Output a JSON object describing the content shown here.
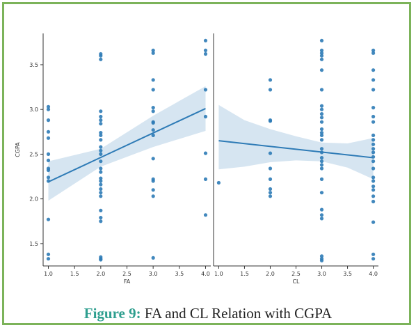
{
  "caption": {
    "label": "Figure 9:",
    "text": "FA and CL Relation with CGPA"
  },
  "colors": {
    "frame": "#7cb35a",
    "point": "#2e7bb6",
    "line": "#2e7bb6",
    "ci_band": "#cfe0ef",
    "caption_label": "#2f9f8f"
  },
  "chart_data": [
    {
      "type": "scatter",
      "xlabel": "FA",
      "ylabel": "CGPA",
      "xlim": [
        0.9,
        4.1
      ],
      "ylim": [
        1.25,
        3.85
      ],
      "x_ticks": [
        "1.0",
        "1.5",
        "2.0",
        "2.5",
        "3.0",
        "3.5",
        "4.0"
      ],
      "y_ticks": [
        "1.5",
        "2.0",
        "2.5",
        "3.0",
        "3.5"
      ],
      "points": [
        [
          1.0,
          3.03
        ],
        [
          1.0,
          3.0
        ],
        [
          1.0,
          2.88
        ],
        [
          1.0,
          2.75
        ],
        [
          1.0,
          2.68
        ],
        [
          1.0,
          2.5
        ],
        [
          1.0,
          2.43
        ],
        [
          1.0,
          2.34
        ],
        [
          1.0,
          2.32
        ],
        [
          1.0,
          2.24
        ],
        [
          1.0,
          2.2
        ],
        [
          1.0,
          1.77
        ],
        [
          1.0,
          1.38
        ],
        [
          1.0,
          1.33
        ],
        [
          2.0,
          3.62
        ],
        [
          2.0,
          3.6
        ],
        [
          2.0,
          3.56
        ],
        [
          2.0,
          2.98
        ],
        [
          2.0,
          2.92
        ],
        [
          2.0,
          2.88
        ],
        [
          2.0,
          2.84
        ],
        [
          2.0,
          2.74
        ],
        [
          2.0,
          2.71
        ],
        [
          2.0,
          2.66
        ],
        [
          2.0,
          2.58
        ],
        [
          2.0,
          2.54
        ],
        [
          2.0,
          2.5
        ],
        [
          2.0,
          2.42
        ],
        [
          2.0,
          2.34
        ],
        [
          2.0,
          2.3
        ],
        [
          2.0,
          2.23
        ],
        [
          2.0,
          2.2
        ],
        [
          2.0,
          2.16
        ],
        [
          2.0,
          2.11
        ],
        [
          2.0,
          2.07
        ],
        [
          2.0,
          2.03
        ],
        [
          2.0,
          1.87
        ],
        [
          2.0,
          1.79
        ],
        [
          2.0,
          1.75
        ],
        [
          2.0,
          1.35
        ],
        [
          2.0,
          1.33
        ],
        [
          2.0,
          1.32
        ],
        [
          3.0,
          3.66
        ],
        [
          3.0,
          3.63
        ],
        [
          3.0,
          3.33
        ],
        [
          3.0,
          3.22
        ],
        [
          3.0,
          3.02
        ],
        [
          3.0,
          2.98
        ],
        [
          3.0,
          2.86
        ],
        [
          3.0,
          2.85
        ],
        [
          3.0,
          2.77
        ],
        [
          3.0,
          2.71
        ],
        [
          3.0,
          2.45
        ],
        [
          3.0,
          2.22
        ],
        [
          3.0,
          2.2
        ],
        [
          3.0,
          2.1
        ],
        [
          3.0,
          2.03
        ],
        [
          3.0,
          1.34
        ],
        [
          4.0,
          3.77
        ],
        [
          4.0,
          3.66
        ],
        [
          4.0,
          3.62
        ],
        [
          4.0,
          3.22
        ],
        [
          4.0,
          2.92
        ],
        [
          4.0,
          2.51
        ],
        [
          4.0,
          2.22
        ],
        [
          4.0,
          1.82
        ]
      ],
      "regression": {
        "x": [
          1.0,
          4.0
        ],
        "y": [
          2.19,
          3.01
        ]
      },
      "ci_upper": [
        [
          1.0,
          2.42
        ],
        [
          2.0,
          2.56
        ],
        [
          3.0,
          2.93
        ],
        [
          4.0,
          3.26
        ]
      ],
      "ci_lower": [
        [
          1.0,
          1.98
        ],
        [
          2.0,
          2.36
        ],
        [
          3.0,
          2.58
        ],
        [
          4.0,
          2.76
        ]
      ]
    },
    {
      "type": "scatter",
      "xlabel": "CL",
      "ylabel": "",
      "xlim": [
        0.9,
        4.1
      ],
      "ylim": [
        1.25,
        3.85
      ],
      "x_ticks": [
        "1.0",
        "1.5",
        "2.0",
        "2.5",
        "3.0",
        "3.5",
        "4.0"
      ],
      "points": [
        [
          1.0,
          2.18
        ],
        [
          2.0,
          3.33
        ],
        [
          2.0,
          3.22
        ],
        [
          2.0,
          2.88
        ],
        [
          2.0,
          2.87
        ],
        [
          2.0,
          2.51
        ],
        [
          2.0,
          2.34
        ],
        [
          2.0,
          2.22
        ],
        [
          2.0,
          2.11
        ],
        [
          2.0,
          2.07
        ],
        [
          2.0,
          2.03
        ],
        [
          3.0,
          3.77
        ],
        [
          3.0,
          3.66
        ],
        [
          3.0,
          3.63
        ],
        [
          3.0,
          3.6
        ],
        [
          3.0,
          3.56
        ],
        [
          3.0,
          3.44
        ],
        [
          3.0,
          3.22
        ],
        [
          3.0,
          3.04
        ],
        [
          3.0,
          3.0
        ],
        [
          3.0,
          2.95
        ],
        [
          3.0,
          2.91
        ],
        [
          3.0,
          2.86
        ],
        [
          3.0,
          2.78
        ],
        [
          3.0,
          2.74
        ],
        [
          3.0,
          2.71
        ],
        [
          3.0,
          2.66
        ],
        [
          3.0,
          2.56
        ],
        [
          3.0,
          2.52
        ],
        [
          3.0,
          2.46
        ],
        [
          3.0,
          2.42
        ],
        [
          3.0,
          2.38
        ],
        [
          3.0,
          2.34
        ],
        [
          3.0,
          2.22
        ],
        [
          3.0,
          2.07
        ],
        [
          3.0,
          1.88
        ],
        [
          3.0,
          1.82
        ],
        [
          3.0,
          1.78
        ],
        [
          3.0,
          1.36
        ],
        [
          3.0,
          1.33
        ],
        [
          3.0,
          1.31
        ],
        [
          4.0,
          3.66
        ],
        [
          4.0,
          3.63
        ],
        [
          4.0,
          3.44
        ],
        [
          4.0,
          3.33
        ],
        [
          4.0,
          3.22
        ],
        [
          4.0,
          3.02
        ],
        [
          4.0,
          2.92
        ],
        [
          4.0,
          2.86
        ],
        [
          4.0,
          2.71
        ],
        [
          4.0,
          2.66
        ],
        [
          4.0,
          2.61
        ],
        [
          4.0,
          2.56
        ],
        [
          4.0,
          2.52
        ],
        [
          4.0,
          2.47
        ],
        [
          4.0,
          2.42
        ],
        [
          4.0,
          2.34
        ],
        [
          4.0,
          2.24
        ],
        [
          4.0,
          2.2
        ],
        [
          4.0,
          2.14
        ],
        [
          4.0,
          2.1
        ],
        [
          4.0,
          2.03
        ],
        [
          4.0,
          1.97
        ],
        [
          4.0,
          1.74
        ],
        [
          4.0,
          1.38
        ],
        [
          4.0,
          1.33
        ]
      ],
      "regression": {
        "x": [
          1.0,
          4.0
        ],
        "y": [
          2.65,
          2.46
        ]
      },
      "ci_upper": [
        [
          1.0,
          3.05
        ],
        [
          1.5,
          2.88
        ],
        [
          2.0,
          2.78
        ],
        [
          2.5,
          2.7
        ],
        [
          3.0,
          2.63
        ],
        [
          3.5,
          2.62
        ],
        [
          4.0,
          2.68
        ]
      ],
      "ci_lower": [
        [
          1.0,
          2.33
        ],
        [
          1.5,
          2.36
        ],
        [
          2.0,
          2.41
        ],
        [
          2.5,
          2.43
        ],
        [
          3.0,
          2.42
        ],
        [
          3.5,
          2.35
        ],
        [
          4.0,
          2.22
        ]
      ]
    }
  ]
}
